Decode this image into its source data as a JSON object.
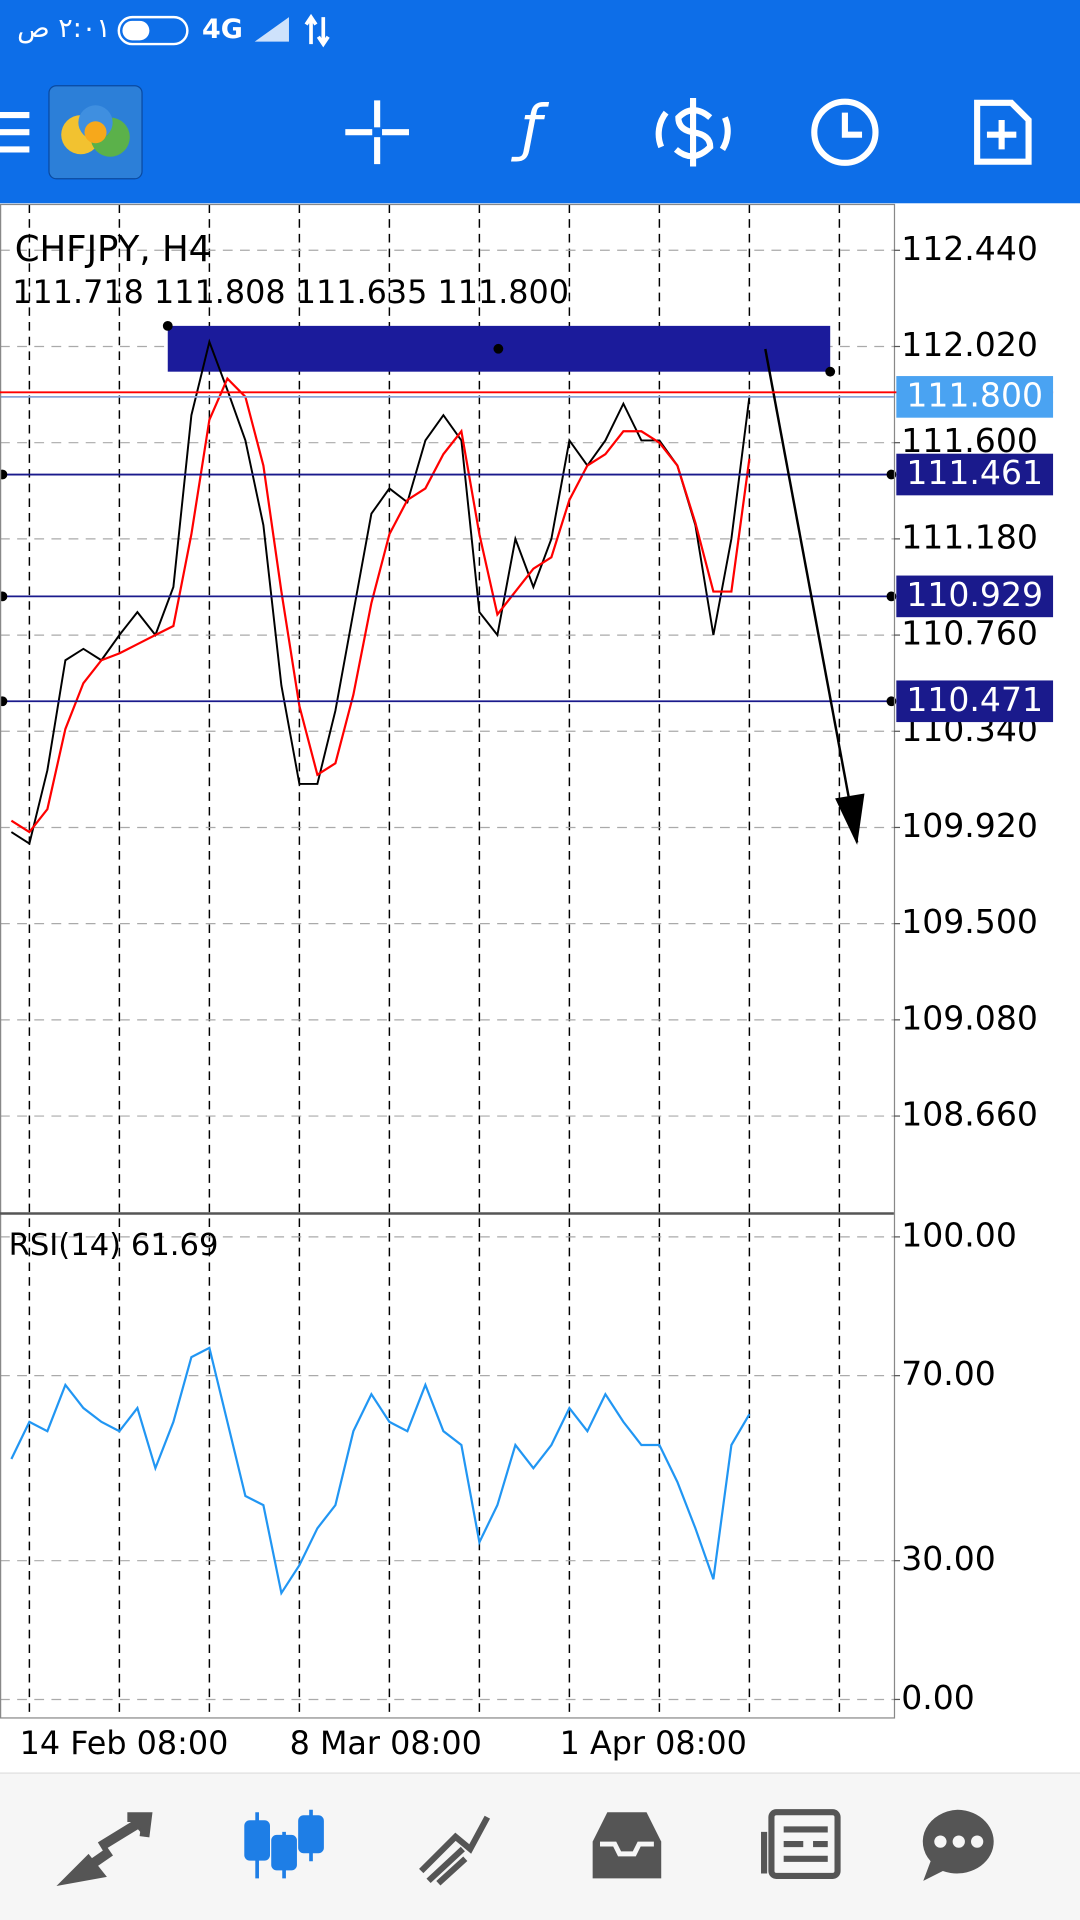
{
  "status_bar": {
    "time": "٢:٠١ ص",
    "network": "4G"
  },
  "chart_data": [
    {
      "type": "line",
      "title": "CHFJPY, H4",
      "subtitle": "111.718 111.808 111.635 111.800",
      "categories": [
        null,
        "14 Feb 08:00",
        null,
        null,
        null,
        null,
        null,
        null,
        null,
        null,
        null,
        null,
        null,
        null,
        null,
        null,
        "8 Mar 08:00",
        null,
        null,
        null,
        null,
        null,
        null,
        null,
        null,
        null,
        null,
        null,
        null,
        null,
        null,
        "1 Apr 08:00",
        null,
        null,
        null,
        null,
        null,
        null,
        null,
        null,
        null,
        null
      ],
      "series": [
        {
          "color": "#000000",
          "values": [
            109.9,
            109.85,
            110.17,
            110.65,
            110.7,
            110.65,
            110.76,
            110.86,
            110.76,
            110.97,
            111.72,
            112.04,
            111.83,
            111.61,
            111.24,
            110.54,
            110.11,
            110.11,
            110.43,
            110.86,
            111.29,
            111.4,
            111.34,
            111.61,
            111.72,
            111.61,
            110.86,
            110.76,
            111.18,
            110.97,
            111.18,
            111.61,
            111.5,
            111.61,
            111.77,
            111.61,
            111.61,
            111.5,
            111.24,
            110.76,
            111.18,
            111.8
          ]
        },
        {
          "color": "#ff0000",
          "values": [
            109.95,
            109.9,
            110.0,
            110.35,
            110.55,
            110.65,
            110.68,
            110.72,
            110.76,
            110.8,
            111.2,
            111.7,
            111.88,
            111.8,
            111.5,
            110.95,
            110.45,
            110.15,
            110.2,
            110.5,
            110.9,
            111.2,
            111.35,
            111.4,
            111.55,
            111.65,
            111.2,
            110.85,
            110.95,
            111.05,
            111.1,
            111.35,
            111.5,
            111.55,
            111.65,
            111.65,
            111.6,
            111.5,
            111.25,
            110.95,
            110.95,
            111.53
          ]
        }
      ],
      "ylim": [
        108.24,
        112.64
      ],
      "yticks": [
        {
          "value": 112.44,
          "label": "112.440"
        },
        {
          "value": 112.02,
          "label": "112.020"
        },
        {
          "value": 111.6,
          "label": "111.600"
        },
        {
          "value": 111.18,
          "label": "111.180"
        },
        {
          "value": 110.76,
          "label": "110.760"
        },
        {
          "value": 110.34,
          "label": "110.340"
        },
        {
          "value": 109.92,
          "label": "109.920"
        },
        {
          "value": 109.5,
          "label": "109.500"
        },
        {
          "value": 109.08,
          "label": "109.080"
        },
        {
          "value": 108.66,
          "label": "108.660"
        }
      ],
      "grid": true,
      "zone": [
        111.91,
        112.11
      ],
      "zone_color": "#1b1b9b",
      "levels": [
        111.461,
        110.929,
        110.471
      ],
      "level_color": "#1a1a8c",
      "bid": {
        "value": 111.8,
        "label": "111.800"
      },
      "bid_color": "#4aa3f2",
      "ask": 111.82,
      "ask_color": "#ff0000"
    },
    {
      "type": "line",
      "title": "RSI(14) 61.69",
      "series": [
        {
          "color": "#2196f3",
          "values": [
            52,
            60,
            58,
            68,
            63,
            60,
            58,
            63,
            50,
            60,
            74,
            76,
            60,
            44,
            42,
            23,
            29,
            37,
            42,
            58,
            66,
            60,
            58,
            68,
            58,
            55,
            34,
            42,
            55,
            50,
            55,
            63,
            58,
            66,
            60,
            55,
            55,
            47,
            37,
            26,
            55,
            61.69
          ]
        }
      ],
      "ylim": [
        -4,
        104.8
      ],
      "yticks": [
        {
          "value": 100,
          "label": "100.00"
        },
        {
          "value": 70,
          "label": "70.00"
        },
        {
          "value": 30,
          "label": "30.00"
        },
        {
          "value": 0,
          "label": "0.00"
        }
      ],
      "grid": true
    }
  ]
}
